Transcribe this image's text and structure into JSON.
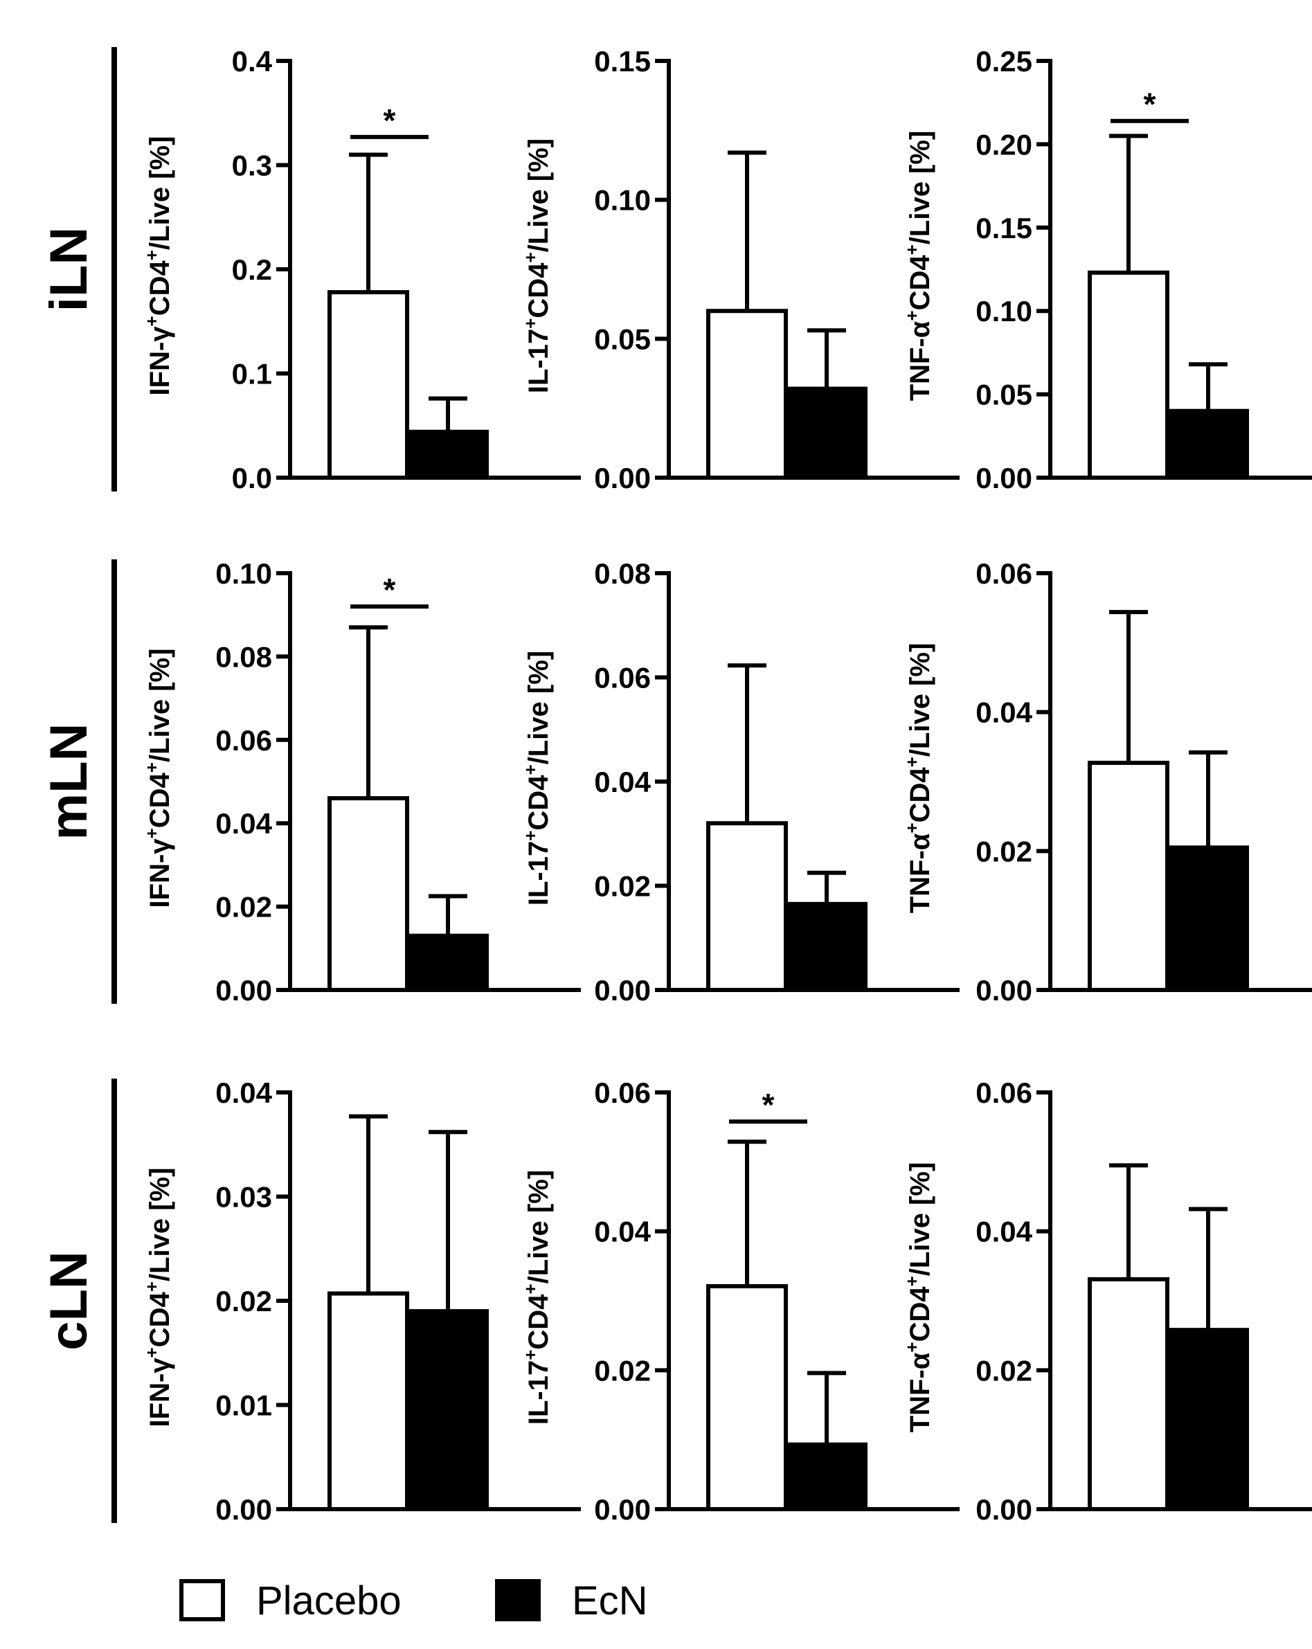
{
  "chart_data": {
    "type": "bar",
    "groups": [
      "Placebo",
      "EcN"
    ],
    "colors": {
      "Placebo": "#ffffff",
      "EcN": "#000000",
      "stroke": "#000000"
    },
    "legend": [
      {
        "name": "Placebo",
        "fill": "#ffffff"
      },
      {
        "name": "EcN",
        "fill": "#000000"
      }
    ],
    "rows": [
      {
        "label": "iLN",
        "panels": [
          {
            "marker": "IFN-γ",
            "ylabel": [
              "IFN-γ",
              "+",
              "CD4",
              "+",
              "/Live [%]"
            ],
            "ylim": [
              0,
              0.4
            ],
            "ticks": [
              "0.0",
              "0.1",
              "0.2",
              "0.3",
              "0.4"
            ],
            "values": [
              0.178,
              0.044
            ],
            "errors": [
              0.132,
              0.032
            ],
            "significant": true,
            "star": "*",
            "sig_y": 0.327
          },
          {
            "marker": "IL-17",
            "ylabel": [
              "IL-17",
              "+",
              "CD4",
              "+",
              "/Live [%]"
            ],
            "ylim": [
              0,
              0.15
            ],
            "ticks": [
              "0.00",
              "0.05",
              "0.10",
              "0.15"
            ],
            "values": [
              0.06,
              0.032
            ],
            "errors": [
              0.057,
              0.021
            ],
            "significant": false,
            "star": "",
            "sig_y": 0
          },
          {
            "marker": "TNF-α",
            "ylabel": [
              "TNF-α",
              "+",
              "CD4",
              "+",
              "/Live [%]"
            ],
            "ylim": [
              0,
              0.25
            ],
            "ticks": [
              "0.00",
              "0.05",
              "0.10",
              "0.15",
              "0.20",
              "0.25"
            ],
            "values": [
              0.123,
              0.04
            ],
            "errors": [
              0.082,
              0.028
            ],
            "significant": true,
            "star": "*",
            "sig_y": 0.214
          }
        ]
      },
      {
        "label": "mLN",
        "panels": [
          {
            "marker": "IFN-γ",
            "ylabel": [
              "IFN-γ",
              "+",
              "CD4",
              "+",
              "/Live [%]"
            ],
            "ylim": [
              0,
              0.1
            ],
            "ticks": [
              "0.00",
              "0.02",
              "0.04",
              "0.06",
              "0.08",
              "0.10"
            ],
            "values": [
              0.046,
              0.013
            ],
            "errors": [
              0.041,
              0.0095
            ],
            "significant": true,
            "star": "*",
            "sig_y": 0.092
          },
          {
            "marker": "IL-17",
            "ylabel": [
              "IL-17",
              "+",
              "CD4",
              "+",
              "/Live [%]"
            ],
            "ylim": [
              0,
              0.08
            ],
            "ticks": [
              "0.00",
              "0.02",
              "0.04",
              "0.06",
              "0.08"
            ],
            "values": [
              0.032,
              0.0165
            ],
            "errors": [
              0.0303,
              0.006
            ],
            "significant": false,
            "star": "",
            "sig_y": 0
          },
          {
            "marker": "TNF-α",
            "ylabel": [
              "TNF-α",
              "+",
              "CD4",
              "+",
              "/Live [%]"
            ],
            "ylim": [
              0,
              0.06
            ],
            "ticks": [
              "0.00",
              "0.02",
              "0.04",
              "0.06"
            ],
            "values": [
              0.0327,
              0.0205
            ],
            "errors": [
              0.0217,
              0.0137
            ],
            "significant": false,
            "star": "",
            "sig_y": 0
          }
        ]
      },
      {
        "label": "cLN",
        "panels": [
          {
            "marker": "IFN-γ",
            "ylabel": [
              "IFN-γ",
              "+",
              "CD4",
              "+",
              "/Live [%]"
            ],
            "ylim": [
              0,
              0.04
            ],
            "ticks": [
              "0.00",
              "0.01",
              "0.02",
              "0.03",
              "0.04"
            ],
            "values": [
              0.0207,
              0.019
            ],
            "errors": [
              0.017,
              0.0172
            ],
            "significant": false,
            "star": "",
            "sig_y": 0
          },
          {
            "marker": "IL-17",
            "ylabel": [
              "IL-17",
              "+",
              "CD4",
              "+",
              "/Live [%]"
            ],
            "ylim": [
              0,
              0.06
            ],
            "ticks": [
              "0.00",
              "0.02",
              "0.04",
              "0.06"
            ],
            "values": [
              0.0321,
              0.0093
            ],
            "errors": [
              0.0208,
              0.0103
            ],
            "significant": true,
            "star": "*",
            "sig_y": 0.0558
          },
          {
            "marker": "TNF-α",
            "ylabel": [
              "TNF-α",
              "+",
              "CD4",
              "+",
              "/Live [%]"
            ],
            "ylim": [
              0,
              0.06
            ],
            "ticks": [
              "0.00",
              "0.02",
              "0.04",
              "0.06"
            ],
            "values": [
              0.0331,
              0.0258
            ],
            "errors": [
              0.0164,
              0.0174
            ],
            "significant": false,
            "star": "",
            "sig_y": 0
          }
        ]
      }
    ]
  }
}
